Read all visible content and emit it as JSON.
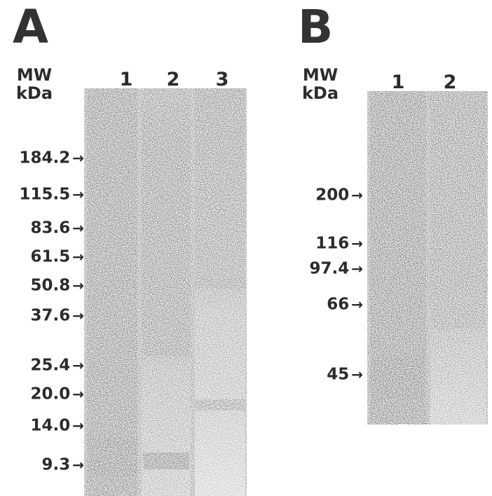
{
  "panels": [
    {
      "letter": "A",
      "mw_header": [
        "MW",
        "kDa"
      ],
      "lanes": [
        "1",
        "2",
        "3"
      ],
      "markers": [
        {
          "label": "184.2",
          "arrow": "→"
        },
        {
          "label": "115.5",
          "arrow": "→"
        },
        {
          "label": "83.6",
          "arrow": "→"
        },
        {
          "label": "61.5",
          "arrow": "→"
        },
        {
          "label": "50.8",
          "arrow": "→"
        },
        {
          "label": "37.6",
          "arrow": "→"
        },
        {
          "label": "25.4",
          "arrow": "→"
        },
        {
          "label": "20.0",
          "arrow": "→"
        },
        {
          "label": "14.0",
          "arrow": "→"
        },
        {
          "label": "9.3",
          "arrow": "→"
        }
      ]
    },
    {
      "letter": "B",
      "mw_header": [
        "MW",
        "kDa"
      ],
      "lanes": [
        "1",
        "2"
      ],
      "markers": [
        {
          "label": "200",
          "arrow": "→"
        },
        {
          "label": "116",
          "arrow": "→"
        },
        {
          "label": "97.4",
          "arrow": "→"
        },
        {
          "label": "66",
          "arrow": "→"
        },
        {
          "label": "45",
          "arrow": "→"
        }
      ]
    }
  ],
  "colors": {
    "gel_dark": "#1a1a1a",
    "gel_mid": "#555555",
    "gel_light": "#8a8a8a",
    "text": "#2c2c2c"
  }
}
